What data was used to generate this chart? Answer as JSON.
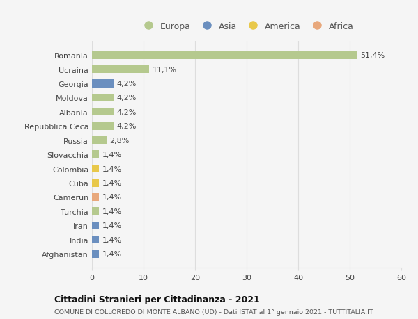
{
  "countries": [
    "Romania",
    "Ucraina",
    "Georgia",
    "Moldova",
    "Albania",
    "Repubblica Ceca",
    "Russia",
    "Slovacchia",
    "Colombia",
    "Cuba",
    "Camerun",
    "Turchia",
    "Iran",
    "India",
    "Afghanistan"
  ],
  "values": [
    51.4,
    11.1,
    4.2,
    4.2,
    4.2,
    4.2,
    2.8,
    1.4,
    1.4,
    1.4,
    1.4,
    1.4,
    1.4,
    1.4,
    1.4
  ],
  "labels": [
    "51,4%",
    "11,1%",
    "4,2%",
    "4,2%",
    "4,2%",
    "4,2%",
    "2,8%",
    "1,4%",
    "1,4%",
    "1,4%",
    "1,4%",
    "1,4%",
    "1,4%",
    "1,4%",
    "1,4%"
  ],
  "continents": [
    "Europa",
    "Europa",
    "Asia",
    "Europa",
    "Europa",
    "Europa",
    "Europa",
    "Europa",
    "America",
    "America",
    "Africa",
    "Europa",
    "Asia",
    "Asia",
    "Asia"
  ],
  "continent_colors": {
    "Europa": "#b5c98e",
    "Asia": "#6b8fbf",
    "America": "#e8c84a",
    "Africa": "#e8a87c"
  },
  "legend_order": [
    "Europa",
    "Asia",
    "America",
    "Africa"
  ],
  "legend_colors": {
    "Europa": "#b5c98e",
    "Asia": "#6b8fbf",
    "America": "#e8c84a",
    "Africa": "#e8a87c"
  },
  "xlim": [
    0,
    60
  ],
  "xticks": [
    0,
    10,
    20,
    30,
    40,
    50,
    60
  ],
  "title": "Cittadini Stranieri per Cittadinanza - 2021",
  "subtitle": "COMUNE DI COLLOREDO DI MONTE ALBANO (UD) - Dati ISTAT al 1° gennaio 2021 - TUTTITALIA.IT",
  "background_color": "#f5f5f5",
  "plot_bg_color": "#f5f5f5",
  "grid_color": "#dddddd",
  "bar_height": 0.55,
  "label_fontsize": 8,
  "ytick_fontsize": 8,
  "xtick_fontsize": 8
}
